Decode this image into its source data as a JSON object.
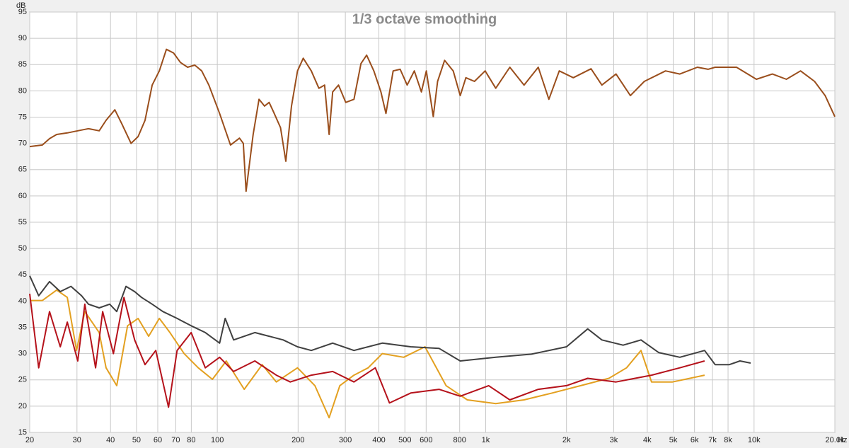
{
  "chart_data": {
    "type": "line",
    "title": "1/3 octave smoothing",
    "ylabel": "dB",
    "xlabel": "Hz",
    "xscale": "log",
    "grid": true,
    "xlim": [
      20,
      20000
    ],
    "ylim": [
      15,
      95
    ],
    "yticks": [
      15,
      20,
      25,
      30,
      35,
      40,
      45,
      50,
      55,
      60,
      65,
      70,
      75,
      80,
      85,
      90,
      95
    ],
    "xticks": [
      20,
      30,
      40,
      50,
      60,
      70,
      80,
      100,
      200,
      300,
      400,
      500,
      600,
      800,
      {
        "value": 1000,
        "label": "1k"
      },
      {
        "value": 2000,
        "label": "2k"
      },
      {
        "value": 3000,
        "label": "3k"
      },
      {
        "value": 4000,
        "label": "4k"
      },
      {
        "value": 5000,
        "label": "5k"
      },
      {
        "value": 6000,
        "label": "6k"
      },
      {
        "value": 7000,
        "label": "7k"
      },
      {
        "value": 8000,
        "label": "8k"
      },
      {
        "value": 10000,
        "label": "10k"
      },
      {
        "value": 20000,
        "label": "20.0k"
      }
    ],
    "series": [
      {
        "color": "#e3a020",
        "x": [
          20,
          22.3,
          25.2,
          27.6,
          29.9,
          32.1,
          36.3,
          38.5,
          42.2,
          46.3,
          50.7,
          55.5,
          60.8,
          66.6,
          75.2,
          84.9,
          95.9,
          108,
          126,
          147,
          166,
          199,
          231,
          261,
          286,
          323,
          365,
          412,
          495,
          594,
          712,
          854,
          1090,
          1390,
          1770,
          2260,
          2880,
          3350,
          3790,
          4150,
          4970,
          6540
        ],
        "values": [
          40.1,
          40.1,
          42.1,
          40.7,
          30.6,
          38,
          34,
          27.3,
          23.9,
          35.3,
          36.7,
          33.3,
          36.7,
          34,
          30,
          27.3,
          25.1,
          28.6,
          23.2,
          27.9,
          24.6,
          27.3,
          23.9,
          17.8,
          23.9,
          25.9,
          27.3,
          30,
          29.3,
          31.3,
          23.9,
          21.2,
          20.5,
          21.2,
          22.5,
          23.9,
          25.3,
          27.3,
          30.6,
          24.6,
          24.6,
          25.9
        ]
      },
      {
        "color": "#b5121b",
        "x": [
          20,
          21.6,
          23.7,
          26.0,
          27.6,
          30.2,
          32.1,
          35.2,
          37.4,
          41.0,
          44.9,
          49.2,
          53.8,
          59.0,
          65.8,
          70.8,
          79.9,
          90.2,
          102,
          115,
          138,
          166,
          187,
          224,
          269,
          323,
          388,
          438,
          526,
          670,
          804,
          1026,
          1230,
          1570,
          2000,
          2400,
          3060,
          4150,
          5290,
          6540
        ],
        "values": [
          41.4,
          27.3,
          38,
          31.3,
          36,
          28.6,
          39.4,
          27.3,
          38,
          30,
          40.7,
          32.6,
          27.9,
          30.6,
          19.8,
          30.6,
          34,
          27.3,
          29.3,
          26.6,
          28.6,
          25.9,
          24.6,
          25.9,
          26.6,
          24.6,
          27.3,
          20.6,
          22.5,
          23.2,
          21.9,
          23.9,
          21.2,
          23.2,
          23.9,
          25.3,
          24.6,
          25.9,
          27.3,
          28.6
        ]
      },
      {
        "color": "#404040",
        "x": [
          20,
          21.6,
          23.7,
          26.0,
          28.5,
          31.2,
          33.1,
          36.3,
          39.7,
          42.2,
          45.7,
          49.2,
          52.2,
          57.2,
          62.7,
          70.8,
          79.9,
          90.2,
          102,
          107,
          115,
          138,
          156,
          176,
          199,
          224,
          269,
          323,
          412,
          526,
          670,
          804,
          1090,
          1480,
          2000,
          2400,
          2710,
          3250,
          3790,
          4410,
          5290,
          6540,
          7160,
          8090,
          8860,
          9710
        ],
        "values": [
          44.8,
          41,
          43.7,
          41.8,
          42.8,
          41,
          39.4,
          38.7,
          39.4,
          38,
          42.8,
          41.8,
          40.7,
          39.4,
          38,
          36.7,
          35.3,
          34,
          32,
          36.7,
          32.6,
          34,
          33.3,
          32.6,
          31.3,
          30.6,
          32,
          30.6,
          32,
          31.3,
          31,
          28.6,
          29.3,
          29.9,
          31.3,
          34.7,
          32.6,
          31.6,
          32.6,
          30.2,
          29.3,
          30.6,
          27.9,
          27.9,
          28.6,
          28.2
        ]
      },
      {
        "color": "#9a4e1c",
        "x": [
          20,
          22.3,
          23.7,
          25.2,
          27.6,
          30.2,
          33.1,
          36.3,
          38.5,
          41.5,
          44.1,
          47.7,
          50.7,
          53.8,
          57.2,
          60.8,
          64.6,
          68.7,
          72.9,
          77.5,
          82.4,
          87.5,
          93.0,
          102,
          112,
          121,
          125,
          128,
          136,
          143,
          150,
          156,
          162,
          172,
          180,
          189,
          199,
          209,
          224,
          239,
          251,
          261,
          269,
          283,
          301,
          323,
          343,
          360,
          383,
          407,
          425,
          452,
          480,
          510,
          542,
          576,
          601,
          638,
          662,
          703,
          757,
          804,
          844,
          908,
          995,
          1090,
          1230,
          1390,
          1570,
          1720,
          1880,
          2120,
          2470,
          2710,
          3060,
          3460,
          3900,
          4680,
          5290,
          6150,
          6740,
          7160,
          8600,
          10200,
          11700,
          13200,
          14900,
          16800,
          18400,
          20000
        ],
        "values": [
          69.4,
          69.7,
          70.9,
          71.7,
          72,
          72.4,
          72.8,
          72.4,
          74.4,
          76.4,
          73.7,
          70,
          71.3,
          74.4,
          81.1,
          83.8,
          87.9,
          87.2,
          85.4,
          84.5,
          84.9,
          83.8,
          81.1,
          75.7,
          69.7,
          71,
          70,
          60.9,
          71.7,
          78.4,
          77.1,
          77.8,
          76,
          73,
          66.6,
          77.1,
          83.8,
          86.2,
          83.8,
          80.5,
          81.1,
          71.7,
          79.8,
          81.1,
          77.8,
          78.4,
          85.2,
          86.8,
          83.8,
          79.8,
          75.7,
          83.8,
          84.1,
          81.1,
          83.8,
          79.8,
          83.8,
          75.1,
          81.8,
          85.8,
          83.8,
          79.1,
          82.5,
          81.8,
          83.8,
          80.5,
          84.5,
          81.1,
          84.5,
          78.4,
          83.8,
          82.5,
          84.2,
          81.1,
          83.2,
          79.1,
          81.8,
          83.8,
          83.2,
          84.5,
          84.1,
          84.5,
          84.5,
          82.2,
          83.2,
          82.2,
          83.8,
          81.8,
          79.1,
          75.1
        ]
      }
    ]
  }
}
